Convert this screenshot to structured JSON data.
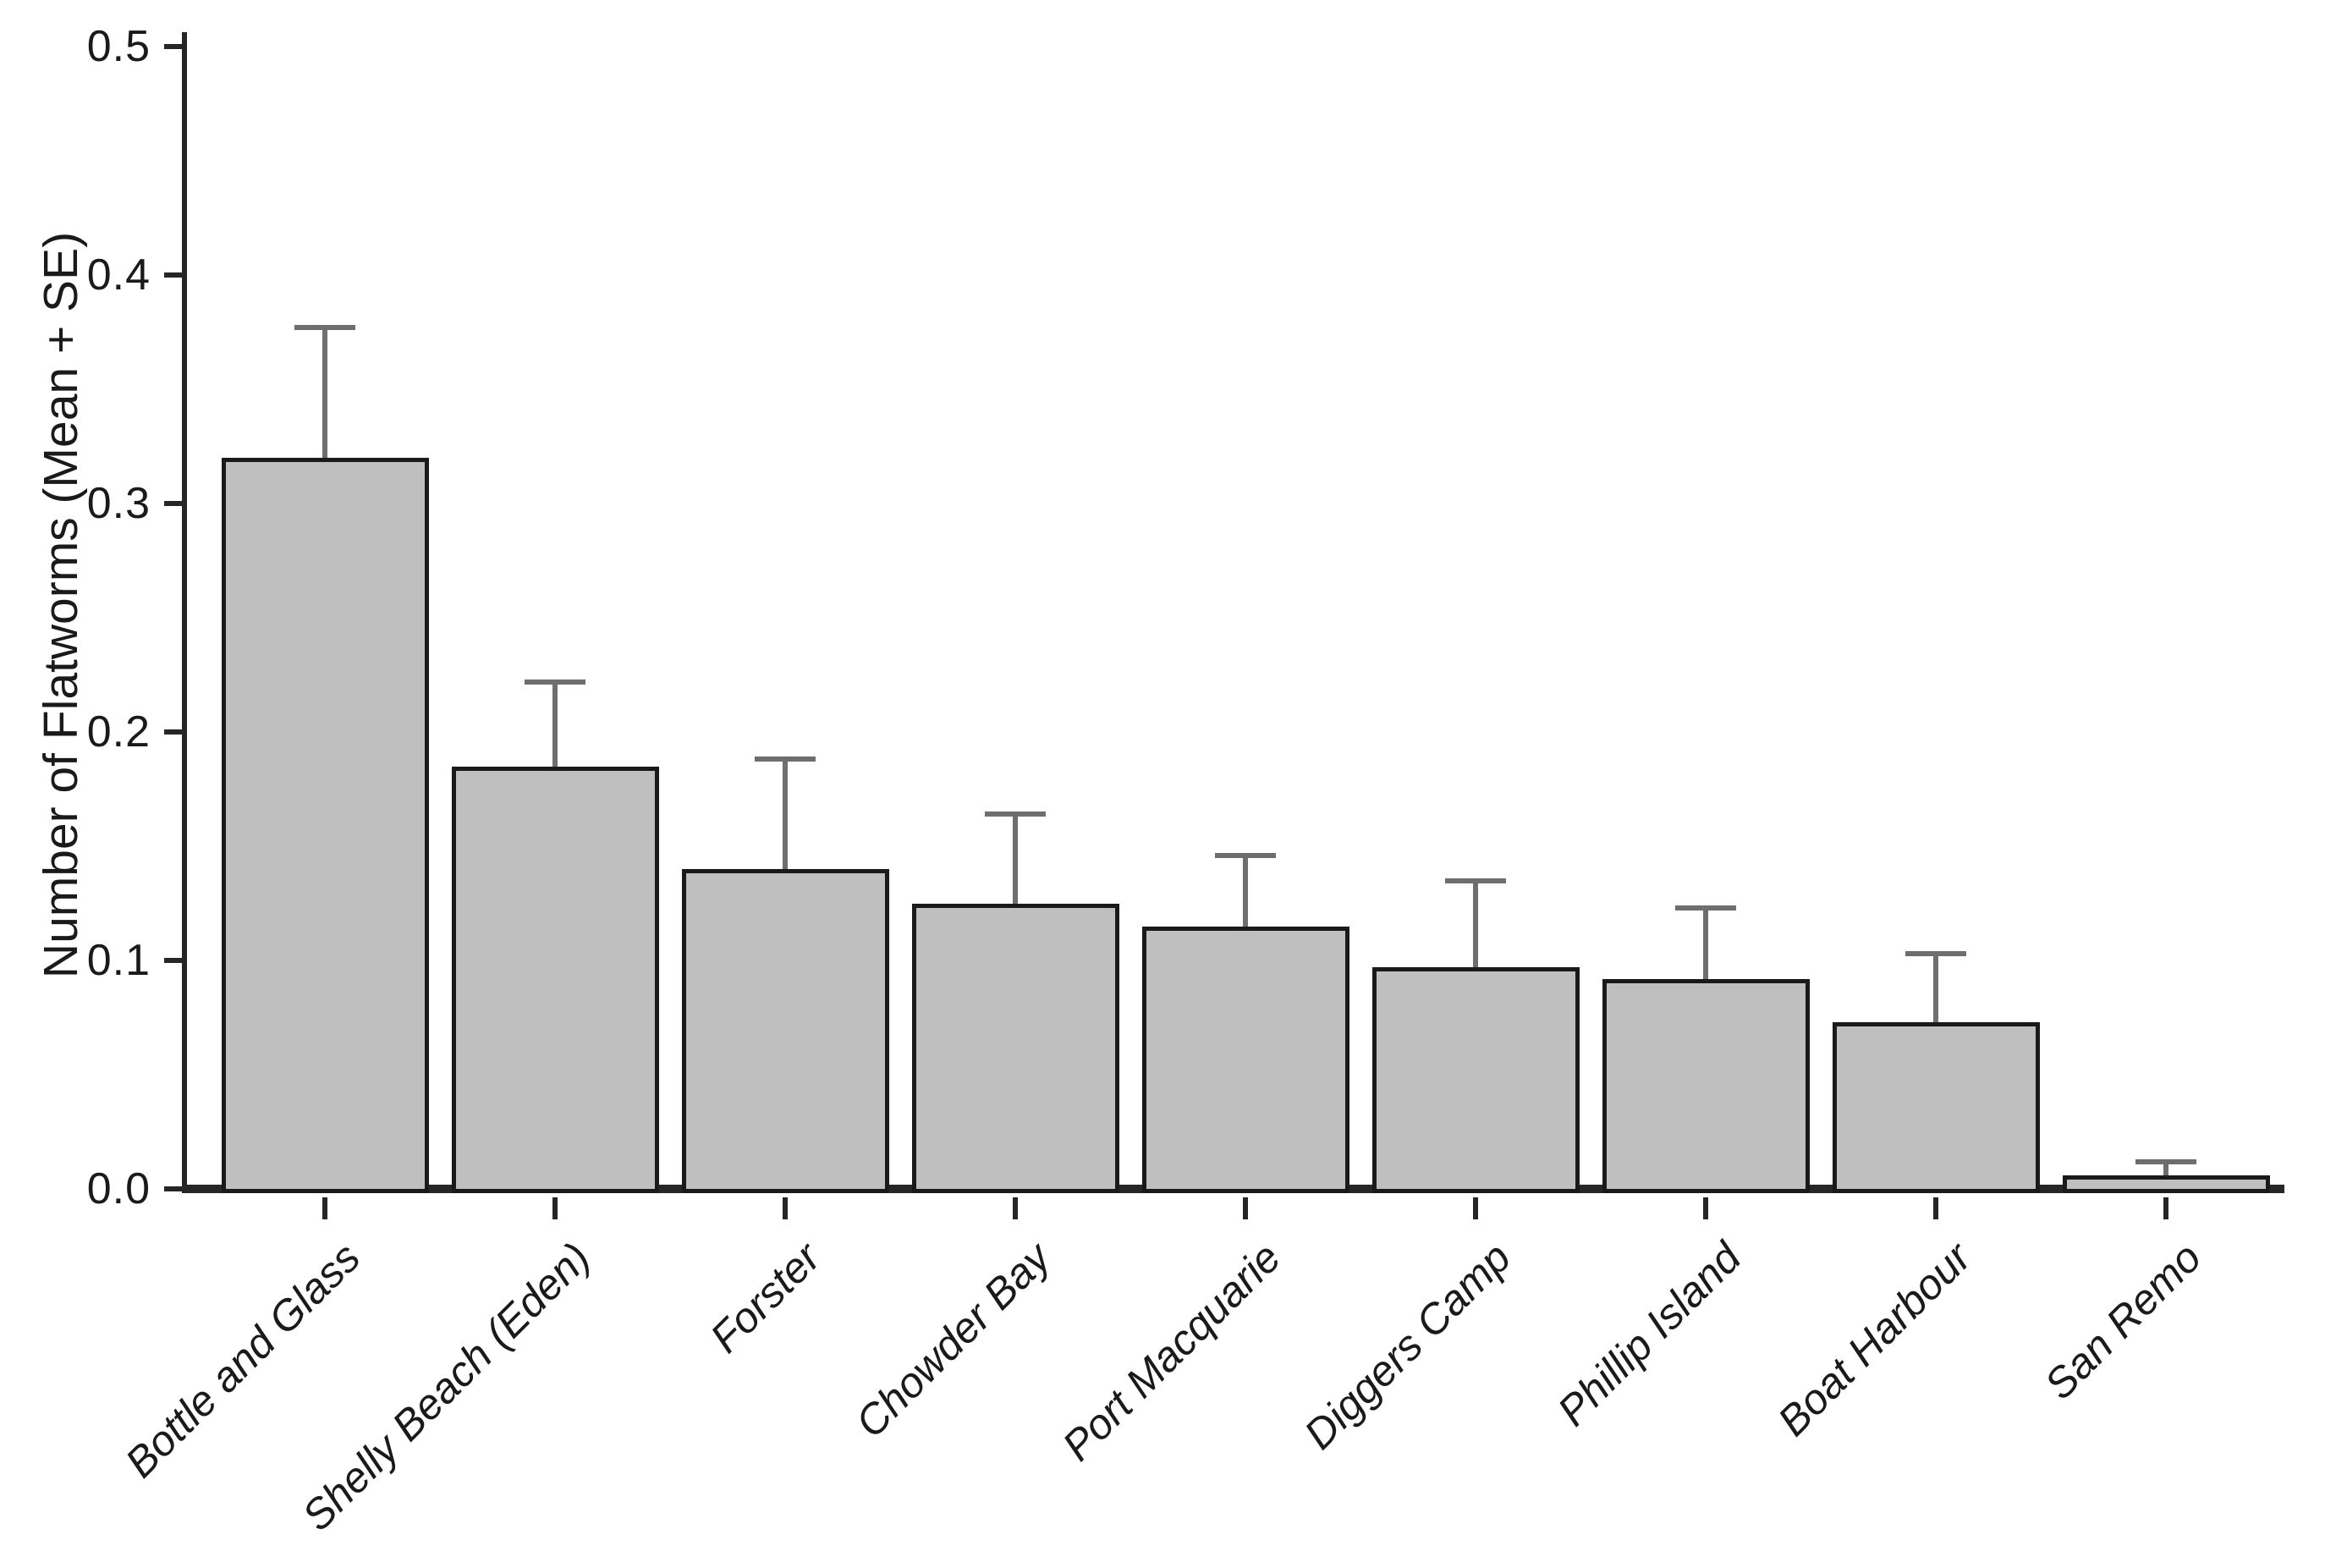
{
  "chart_data": {
    "type": "bar",
    "title": "",
    "xlabel": "",
    "ylabel": "Number of Flatworms (Mean + SE)",
    "categories": [
      "Bottle and Glass",
      "Shelly Beach (Eden)",
      "Forster",
      "Chowder Bay",
      "Port Macquarie",
      "Diggers Camp",
      "Phillip Island",
      "Boat Harbour",
      "San Remo"
    ],
    "values": [
      0.32,
      0.185,
      0.14,
      0.125,
      0.115,
      0.097,
      0.092,
      0.073,
      0.006
    ],
    "se": [
      0.057,
      0.037,
      0.048,
      0.039,
      0.031,
      0.038,
      0.031,
      0.03,
      0.006
    ],
    "error_cap_values": [
      0.377,
      0.222,
      0.188,
      0.164,
      0.146,
      0.135,
      0.123,
      0.103,
      0.012
    ],
    "error_bar_direction": "upper-only",
    "ylim": [
      0,
      0.5
    ],
    "ytick_labels": [
      "0.0",
      "0.1",
      "0.2",
      "0.3",
      "0.4",
      "0.5"
    ],
    "ytick_values": [
      0.0,
      0.1,
      0.2,
      0.3,
      0.4,
      0.5
    ],
    "grid": "off",
    "legend": "none",
    "colors": {
      "bar_fill": "#bfbfbf",
      "bar_border": "#1a1a1a",
      "error_bar": "#6e6e6e",
      "axis": "#262626",
      "text": "#1a1a1a",
      "background": "#ffffff"
    }
  }
}
